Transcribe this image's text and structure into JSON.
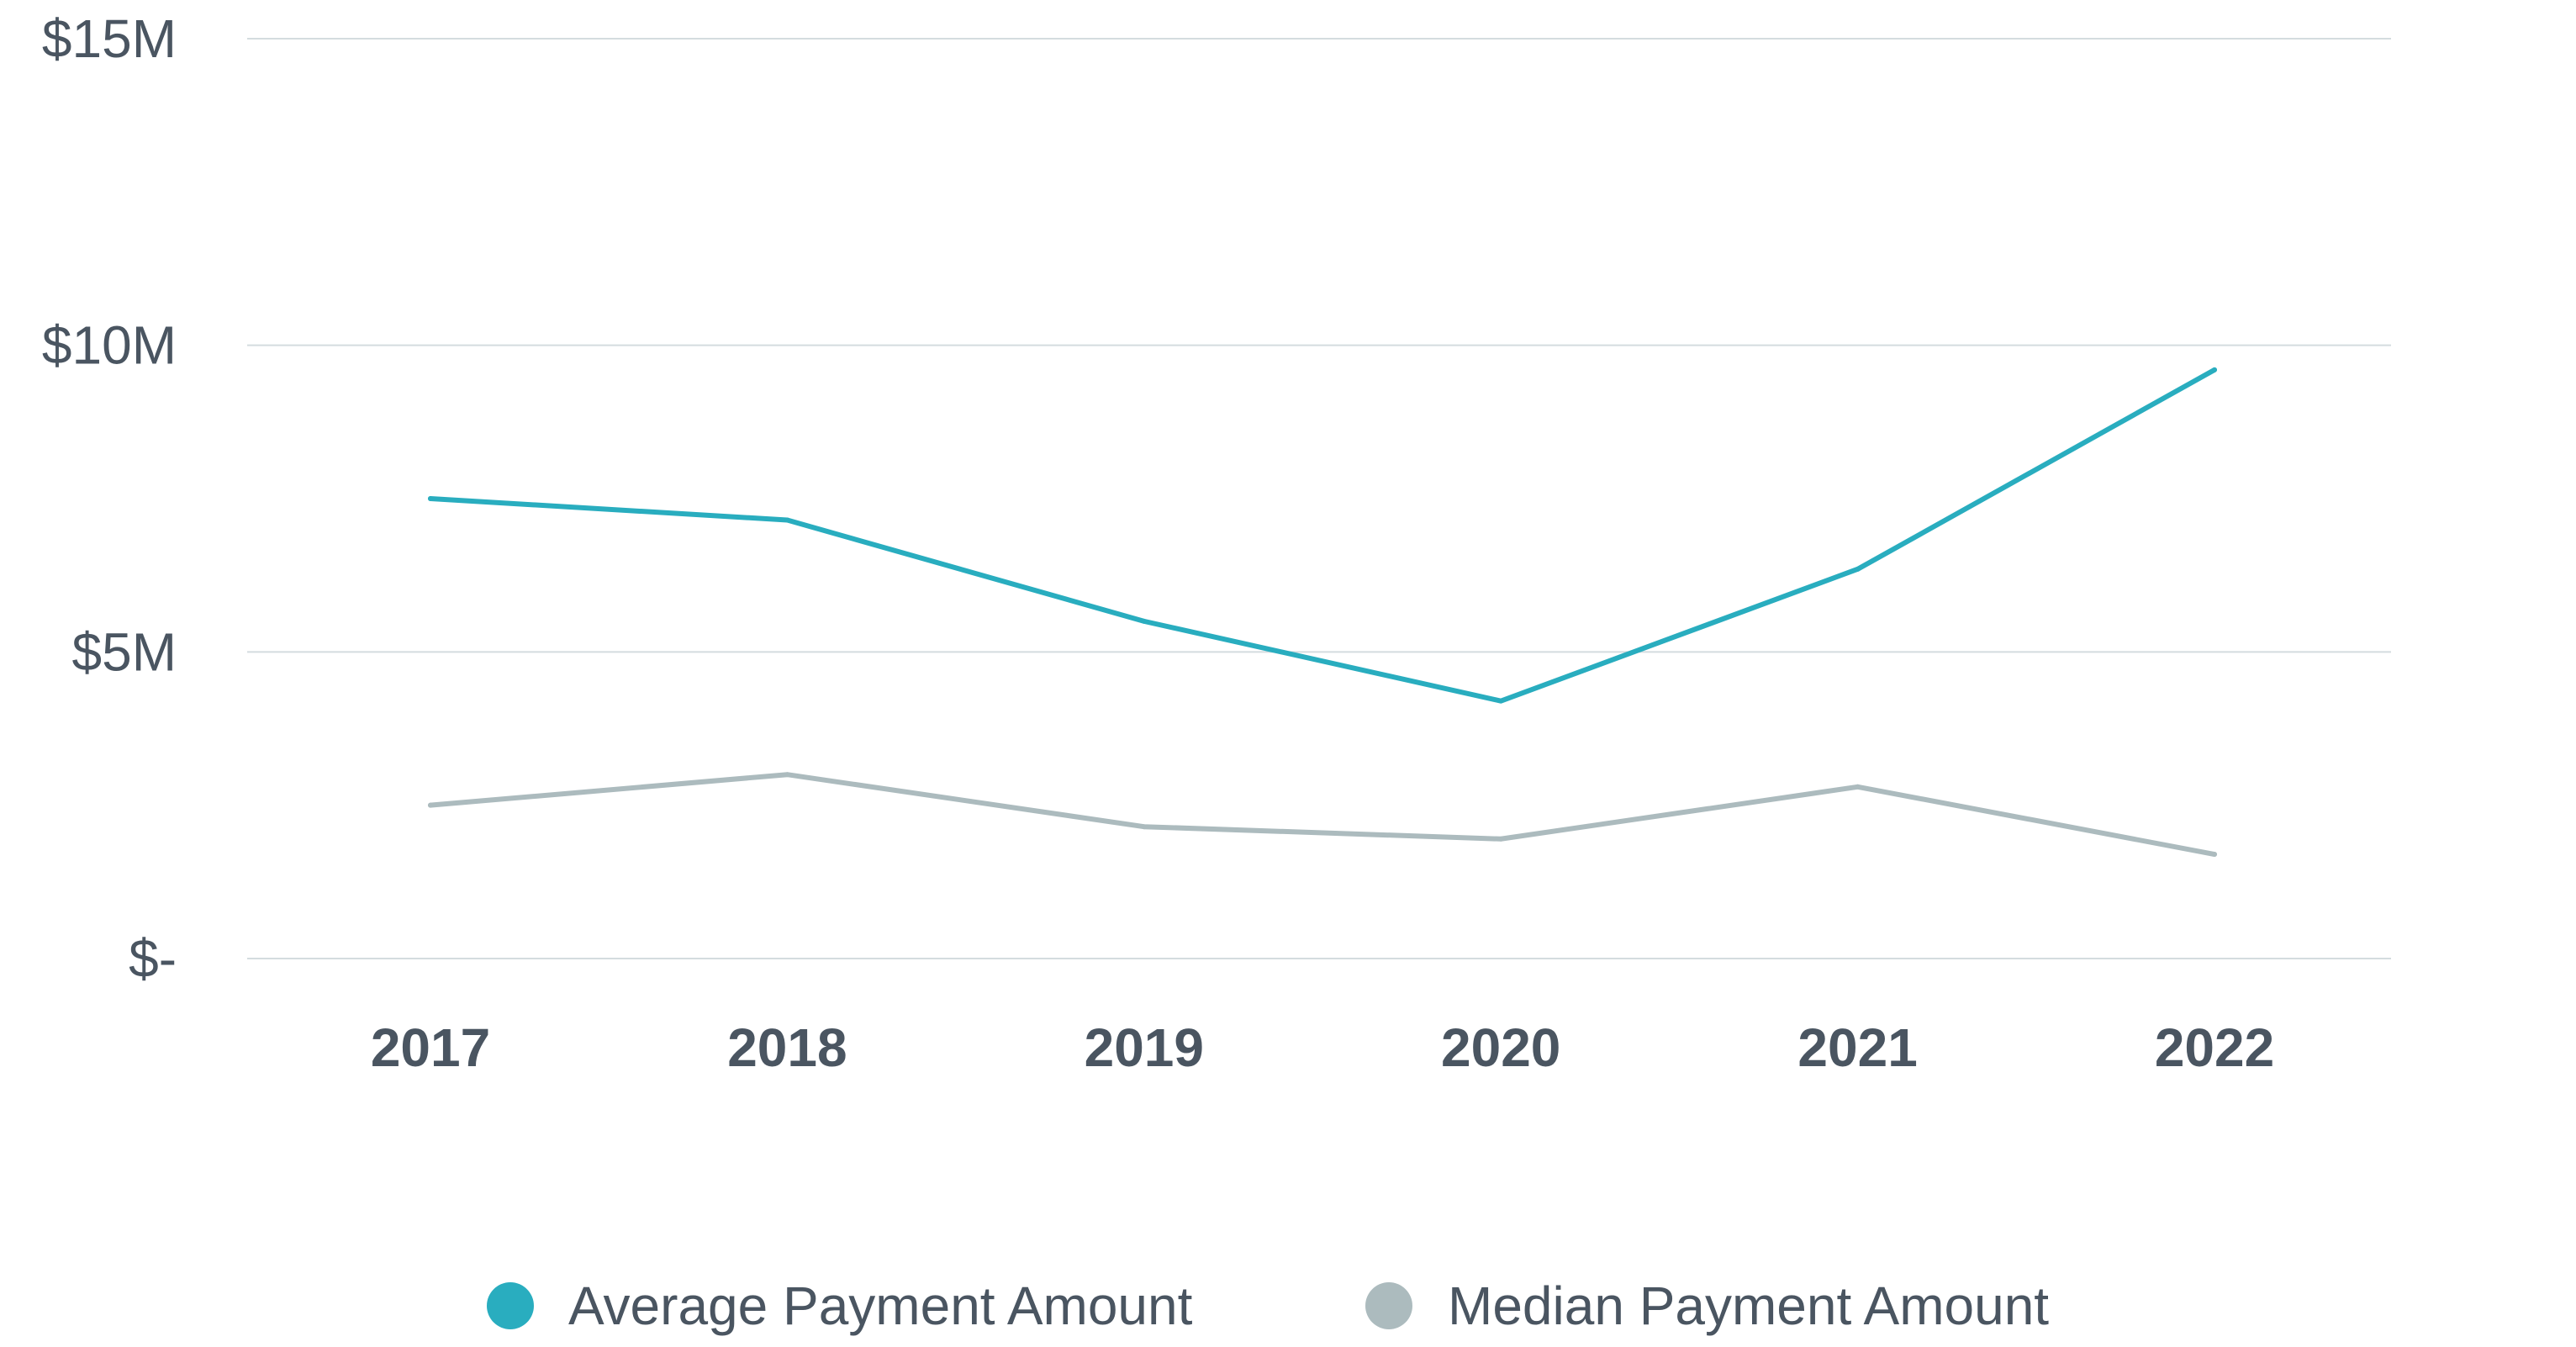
{
  "chart_data": {
    "type": "line",
    "title": "",
    "xlabel": "",
    "ylabel": "",
    "categories": [
      "2017",
      "2018",
      "2019",
      "2020",
      "2021",
      "2022"
    ],
    "series": [
      {
        "name": "Average Payment Amount",
        "color": "#29adbf",
        "values": [
          7.5,
          7.15,
          5.5,
          4.2,
          6.35,
          9.6
        ]
      },
      {
        "name": "Median Payment Amount",
        "color": "#acbbbe",
        "values": [
          2.5,
          3.0,
          2.15,
          1.95,
          2.8,
          1.7
        ]
      }
    ],
    "ylim": [
      0,
      15
    ],
    "yticks": [
      {
        "value": 0,
        "label": "$-"
      },
      {
        "value": 5,
        "label": "$5M"
      },
      {
        "value": 10,
        "label": "$10M"
      },
      {
        "value": 15,
        "label": "$15M"
      }
    ],
    "grid": true,
    "legend_position": "bottom-center"
  },
  "colors": {
    "text": "#4a5561",
    "grid": "#d4dcdf"
  }
}
